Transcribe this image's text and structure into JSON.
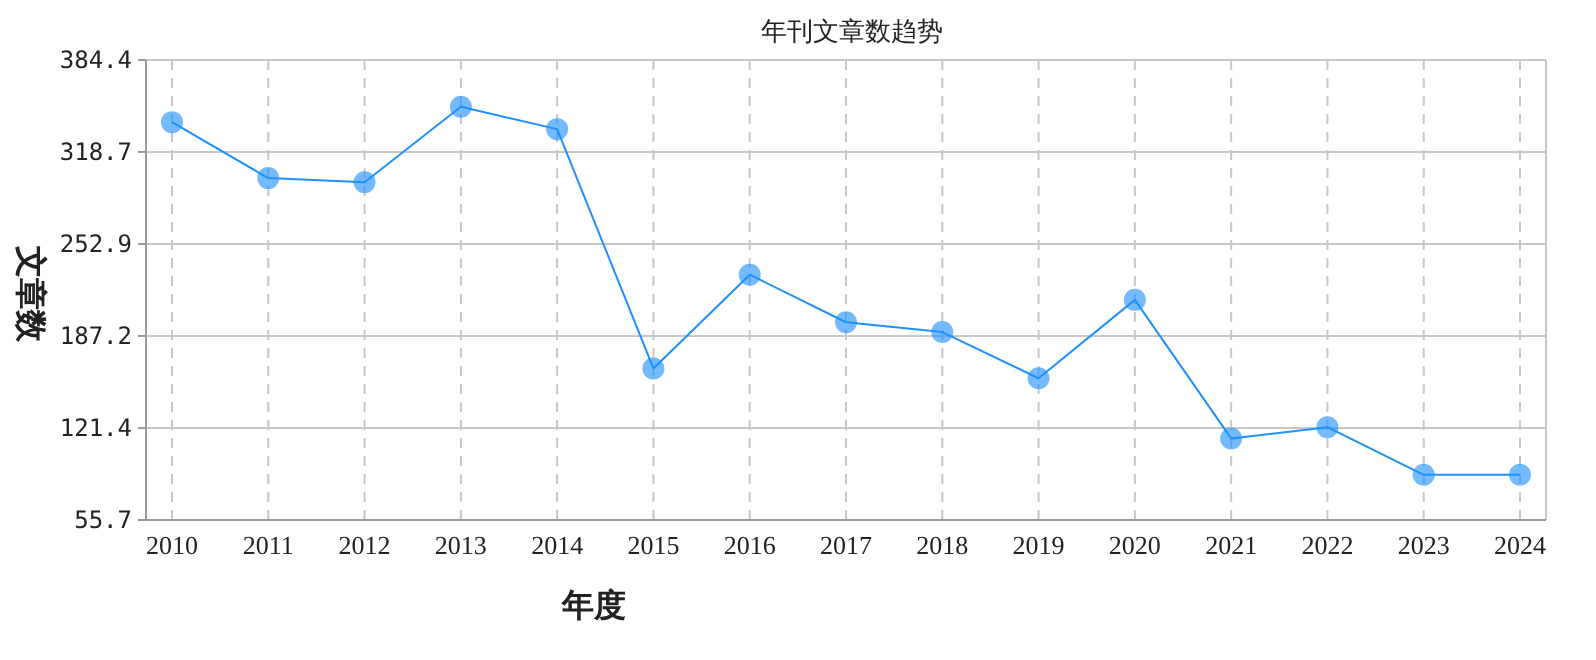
{
  "chart_data": {
    "type": "line",
    "title": "年刊文章数趋势",
    "xlabel": "年度",
    "ylabel": "文章数",
    "categories": [
      "2010",
      "2011",
      "2012",
      "2013",
      "2014",
      "2015",
      "2016",
      "2017",
      "2018",
      "2019",
      "2020",
      "2021",
      "2022",
      "2023",
      "2024"
    ],
    "series": [
      {
        "color": "#1e90ff",
        "values": [
          340,
          300,
          297,
          351,
          335,
          164,
          231,
          197,
          190,
          157,
          213,
          114,
          122,
          88,
          88
        ]
      }
    ],
    "marker": "circle",
    "ylim": [
      55.7,
      384.4
    ],
    "yticks": [
      55.7,
      121.4,
      187.2,
      252.9,
      318.7,
      384.4
    ],
    "grid": true
  }
}
